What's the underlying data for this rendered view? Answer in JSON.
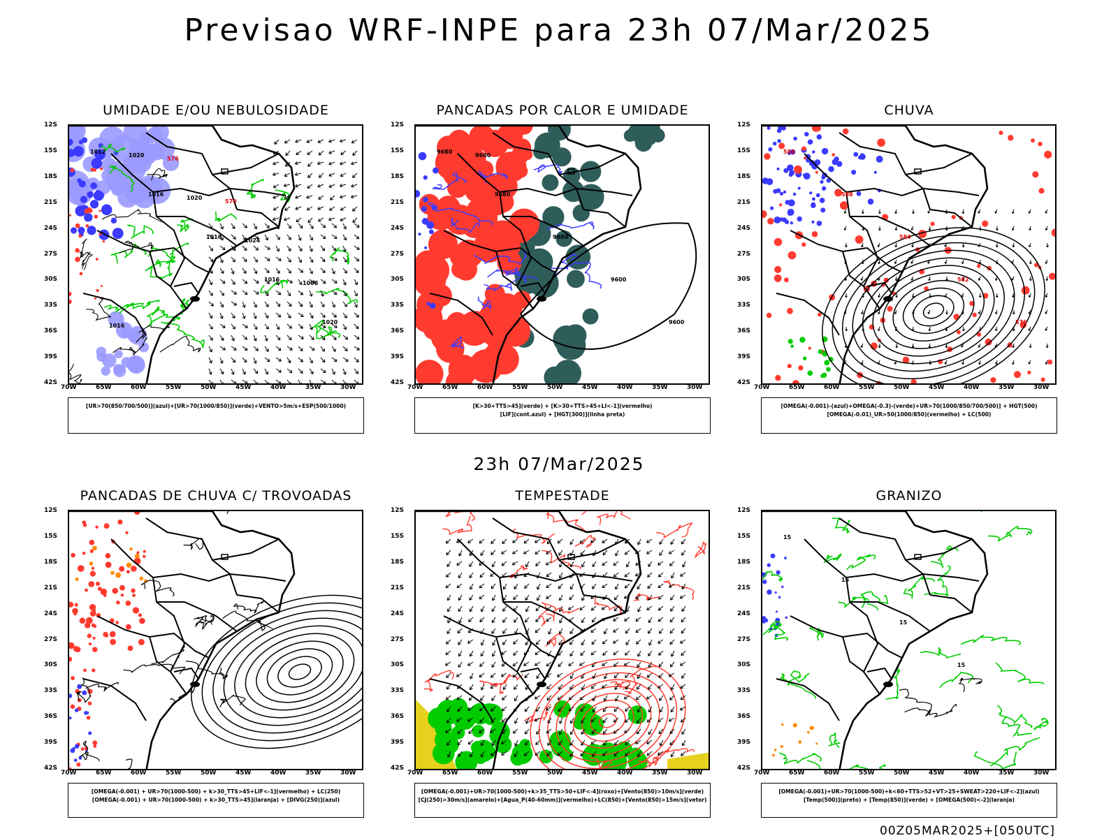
{
  "title": "Previsao WRF-INPE  para 23h 07/Mar/2025",
  "subtitle": "23h 07/Mar/2025",
  "footer": "00Z05MAR2025+[050UTC]",
  "axes": {
    "lat_ticks": [
      "12S",
      "15S",
      "18S",
      "21S",
      "24S",
      "27S",
      "30S",
      "33S",
      "36S",
      "39S",
      "42S"
    ],
    "lon_ticks": [
      "70W",
      "65W",
      "60W",
      "55W",
      "50W",
      "45W",
      "40W",
      "35W",
      "30W"
    ]
  },
  "colors": {
    "blue": "#3b3bff",
    "light_blue": "#9a9aff",
    "green": "#00cc00",
    "red": "#ff3b30",
    "dark_teal": "#2f5d5a",
    "yellow": "#e6d21e",
    "orange": "#ff8a00"
  },
  "panels": [
    {
      "title": "UMIDADE E/OU NEBULOSIDADE",
      "legend": [
        "[UR>70(850/700/500)](azul)+[UR>70(1000/850)](verde)+VENTO>5m/s+ESP(500/1000)"
      ],
      "contour_labels": [
        "1012",
        "1016",
        "1016",
        "1016",
        "1020",
        "1020",
        "1020",
        "1024",
        "1008",
        "1016",
        "576",
        "570"
      ]
    },
    {
      "title": "PANCADAS POR CALOR E UMIDADE",
      "legend": [
        "[K>30+TTS>45](verde) + [K>30+TTS>45+LI<-1](vermelho)",
        "[LIF](cont.azul) + [HGT(300)](linha preta)"
      ],
      "contour_labels": [
        "9680",
        "9680",
        "9680",
        "9600",
        "9600",
        "9600"
      ]
    },
    {
      "title": "CHUVA",
      "legend": [
        "[OMEGA(-0.001)-(azul)+OMEGA(-0.3)-(verde)+UR>70(1000/850/700/500)] + HGT(500)",
        "[OMEGA(-0.01)_UR>50(1000/850)(vermelho) + LC(500)"
      ],
      "contour_labels": [
        "588",
        "588",
        "584",
        "582",
        "576"
      ]
    },
    {
      "title": "PANCADAS DE CHUVA C/ TROVOADAS",
      "legend": [
        "[OMEGA(-0.001) + UR>70(1000-500) + k>30_TTS>45+LIF<-1](vermelho) + LC(250)",
        "[OMEGA(-0.001) + UR>70(1000-500) + k>30_TTS>45](laranja) + [DIVG(250)](azul)"
      ]
    },
    {
      "title": "TEMPESTADE",
      "legend": [
        "[OMEGA(-0.001)+UR>70(1000-500)+k>35_TTS>50+LIF<-4](roxo)+[Vento(850)>10m/s](verde)",
        "[CJ(250)>30m/s](amarelo)+[Agua_P(40-60mm)](vermelho)+LC(850)+[Vento(850)>15m/s](vetor)"
      ]
    },
    {
      "title": "GRANIZO",
      "legend": [
        "[OMEGA(-0.001)+UR>70(1000-500)+k<60+TTS>52+VT>25+SWEAT>220+LIF<-2](azul)",
        "[Temp(500)](preto) + [Temp(850)](verde) + [OMEGA(500)<-2](laranja)"
      ],
      "contour_labels": [
        "15",
        "15",
        "15",
        "15"
      ]
    }
  ]
}
